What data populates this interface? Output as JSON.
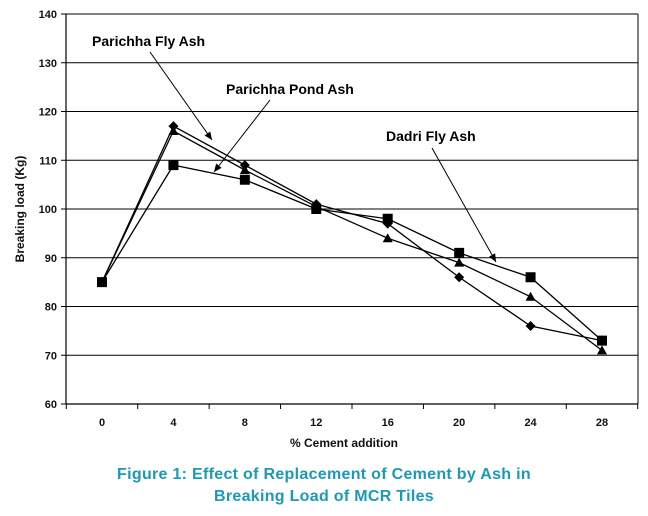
{
  "chart_data": {
    "type": "line",
    "title": "",
    "xlabel": "% Cement addition",
    "ylabel": "Breaking load (Kg)",
    "x": [
      0,
      4,
      8,
      12,
      16,
      20,
      24,
      28
    ],
    "x_tick_labels": [
      "0",
      "4",
      "8",
      "12",
      "16",
      "20",
      "24",
      "28"
    ],
    "ylim": [
      60,
      140
    ],
    "y_ticks": [
      60,
      70,
      80,
      90,
      100,
      110,
      120,
      130,
      140
    ],
    "grid": "horizontal",
    "legend": "none",
    "series": [
      {
        "name": "Parichha Fly Ash",
        "marker": "diamond",
        "values": [
          85,
          117,
          109,
          101,
          97,
          86,
          76,
          73
        ]
      },
      {
        "name": "Parichha Pond Ash",
        "marker": "triangle",
        "values": [
          85,
          116,
          108,
          100.5,
          94,
          89,
          82,
          71
        ]
      },
      {
        "name": "Dadri Fly Ash",
        "marker": "square",
        "values": [
          85,
          109,
          106,
          100,
          98,
          91,
          86,
          73
        ]
      }
    ],
    "annotations": [
      {
        "text": "Parichha Fly Ash",
        "series": 0
      },
      {
        "text": "Parichha Pond Ash",
        "series": 1
      },
      {
        "text": "Dadri Fly Ash",
        "series": 2
      }
    ]
  },
  "caption": {
    "line1": "Figure 1: Effect of Replacement of Cement by Ash in",
    "line2": "Breaking Load of MCR Tiles"
  },
  "colors": {
    "lines": "#000000",
    "grid": "#000000",
    "caption": "#1a9ab6"
  }
}
